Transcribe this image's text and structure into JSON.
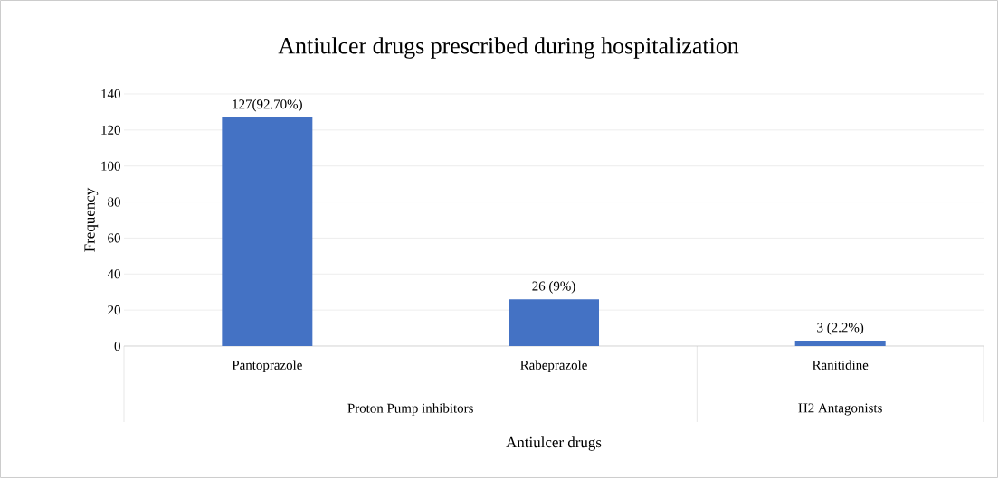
{
  "chart_data": {
    "type": "bar",
    "title": "Antiulcer drugs prescribed during hospitalization",
    "xlabel": "Antiulcer drugs",
    "ylabel": "Frequency",
    "categories": [
      "Pantoprazole",
      "Rabeprazole",
      "Ranitidine"
    ],
    "values": [
      127,
      26,
      3
    ],
    "color": "#4472c4",
    "value_labels": [
      "127(92.70%)",
      "26 (9%)",
      "3 (2.2%)"
    ],
    "annotations": [
      "Proton Pump inhibitors",
      "H2 Antagonists"
    ],
    "ylim": [
      0,
      140
    ],
    "yticks": [
      0,
      20,
      40,
      60,
      80,
      100,
      120,
      140
    ],
    "grid": "y"
  }
}
